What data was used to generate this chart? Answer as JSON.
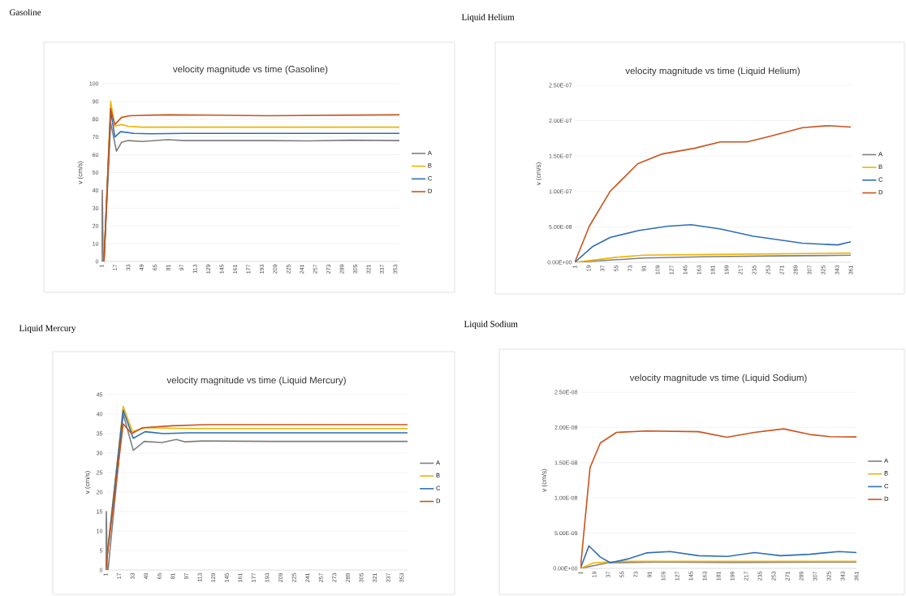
{
  "chart_data": [
    {
      "type": "line",
      "title": "velocity magnitude vs time (Gasoline)",
      "annotations": [
        "Gasoline"
      ],
      "ylabel": "v (cm/s)",
      "xlim": [
        1,
        358
      ],
      "ylim": [
        0,
        100
      ],
      "xticks": [
        1,
        17,
        33,
        49,
        65,
        81,
        97,
        113,
        129,
        145,
        161,
        177,
        193,
        209,
        225,
        241,
        257,
        273,
        289,
        305,
        321,
        337,
        353
      ],
      "yticks": [
        0,
        10,
        20,
        30,
        40,
        50,
        60,
        70,
        80,
        90,
        100
      ],
      "grid": "y",
      "legend": "right",
      "marker": "none",
      "line_style": "solid",
      "series": [
        {
          "name": "A",
          "color": "#7f7f7f",
          "x": [
            1,
            2,
            3,
            4,
            12,
            19,
            25,
            33,
            50,
            80,
            100,
            200,
            250,
            300,
            358
          ],
          "values": [
            0,
            40,
            0,
            0,
            78,
            62,
            67,
            68,
            67.5,
            68.5,
            68,
            68,
            67.8,
            68.2,
            68
          ]
        },
        {
          "name": "B",
          "color": "#f0b400",
          "x": [
            1,
            4,
            12,
            17,
            25,
            33,
            50,
            100,
            200,
            358
          ],
          "values": [
            0,
            0,
            90,
            76,
            77,
            76,
            75.5,
            75.5,
            75.5,
            75.5
          ]
        },
        {
          "name": "C",
          "color": "#2e6fb5",
          "x": [
            1,
            4,
            12,
            17,
            24,
            40,
            60,
            100,
            200,
            358
          ],
          "values": [
            0,
            0,
            85,
            70,
            73,
            72,
            71.8,
            72,
            72,
            72
          ]
        },
        {
          "name": "D",
          "color": "#c9531c",
          "x": [
            1,
            4,
            12,
            17,
            25,
            35,
            80,
            200,
            358
          ],
          "values": [
            0,
            0,
            86,
            77,
            81,
            82,
            82.5,
            82,
            82.5
          ]
        }
      ]
    },
    {
      "type": "line",
      "title": "velocity magnitude vs time (Liquid Helium)",
      "annotations": [
        "Liquid Helium"
      ],
      "ylabel": "v (cm/s)",
      "xlim": [
        1,
        361
      ],
      "ylim": [
        0,
        2.5e-07
      ],
      "xticks": [
        1,
        19,
        37,
        55,
        73,
        91,
        109,
        127,
        145,
        163,
        181,
        199,
        217,
        235,
        253,
        271,
        289,
        307,
        325,
        343,
        361
      ],
      "yticks": [
        {
          "value": 0,
          "label": "0.00E+00"
        },
        {
          "value": 5e-08,
          "label": "5.00E-08"
        },
        {
          "value": 1e-07,
          "label": "1.00E-07"
        },
        {
          "value": 1.5e-07,
          "label": "1.50E-07"
        },
        {
          "value": 2e-07,
          "label": "2.00E-07"
        },
        {
          "value": 2.5e-07,
          "label": "2.50E-07"
        }
      ],
      "grid": "y",
      "legend": "right",
      "marker": "none",
      "line_style": "solid",
      "series": [
        {
          "name": "A",
          "color": "#7f7f7f",
          "x": [
            1,
            91,
            181,
            271,
            361
          ],
          "values": [
            0,
            6e-09,
            8e-09,
            9e-09,
            1e-08
          ]
        },
        {
          "name": "B",
          "color": "#f0b400",
          "x": [
            1,
            55,
            91,
            181,
            271,
            361
          ],
          "values": [
            0,
            7e-09,
            1e-08,
            1.1e-08,
            1.2e-08,
            1.3e-08
          ]
        },
        {
          "name": "C",
          "color": "#2e6fb5",
          "x": [
            1,
            24,
            47,
            85,
            123,
            153,
            191,
            233,
            298,
            344,
            361
          ],
          "values": [
            0,
            2.2e-08,
            3.5e-08,
            4.5e-08,
            5.1e-08,
            5.3e-08,
            4.7e-08,
            3.7e-08,
            2.7e-08,
            2.45e-08,
            2.9e-08
          ]
        },
        {
          "name": "D",
          "color": "#c9531c",
          "x": [
            1,
            20,
            47,
            83,
            115,
            157,
            191,
            226,
            256,
            298,
            332,
            361
          ],
          "values": [
            0,
            5.1e-08,
            1e-07,
            1.39e-07,
            1.53e-07,
            1.61e-07,
            1.7e-07,
            1.7e-07,
            1.78e-07,
            1.9e-07,
            1.93e-07,
            1.91e-07
          ]
        }
      ]
    },
    {
      "type": "line",
      "title": "velocity magnitude vs time (Liquid Mercury)",
      "annotations": [
        "Liquid Mercury"
      ],
      "ylabel": "v (cm/s)",
      "xlim": [
        1,
        360
      ],
      "ylim": [
        0,
        45
      ],
      "xticks": [
        1,
        17,
        33,
        49,
        65,
        81,
        97,
        113,
        129,
        145,
        161,
        177,
        193,
        209,
        225,
        241,
        257,
        273,
        289,
        305,
        321,
        337,
        353
      ],
      "yticks": [
        0,
        5,
        10,
        15,
        20,
        25,
        30,
        35,
        40,
        45
      ],
      "grid": "y",
      "legend": "right",
      "marker": "none",
      "line_style": "solid",
      "series": [
        {
          "name": "A",
          "color": "#7f7f7f",
          "x": [
            1,
            2,
            3,
            4,
            22,
            34,
            47,
            68,
            85,
            95,
            116,
            200,
            360
          ],
          "values": [
            0,
            15,
            0,
            0,
            40,
            30.7,
            33,
            32.7,
            33.5,
            32.9,
            33.1,
            33,
            33
          ]
        },
        {
          "name": "B",
          "color": "#f0b400",
          "x": [
            1,
            22,
            33,
            48,
            100,
            200,
            360
          ],
          "values": [
            0,
            42,
            35.5,
            36.5,
            36.3,
            36.3,
            36.3
          ]
        },
        {
          "name": "C",
          "color": "#2e6fb5",
          "x": [
            1,
            22,
            34,
            48,
            70,
            100,
            360
          ],
          "values": [
            0,
            41,
            33.8,
            35.5,
            35,
            35.2,
            35.2
          ]
        },
        {
          "name": "D",
          "color": "#c9531c",
          "x": [
            1,
            22,
            32,
            45,
            80,
            120,
            360
          ],
          "values": [
            0,
            37.5,
            35,
            36.5,
            37,
            37.3,
            37.3
          ]
        }
      ]
    },
    {
      "type": "line",
      "title": "velocity magnitude vs time (Liquid Sodium)",
      "annotations": [
        "Liquid Sodium"
      ],
      "ylabel": "v (cm/s)",
      "xlim": [
        1,
        361
      ],
      "ylim": [
        0,
        2.5e-08
      ],
      "xticks": [
        1,
        19,
        37,
        55,
        73,
        91,
        109,
        127,
        145,
        163,
        181,
        199,
        217,
        235,
        253,
        271,
        289,
        307,
        325,
        343,
        361
      ],
      "yticks": [
        {
          "value": 0,
          "label": "0.00E+00"
        },
        {
          "value": 5e-09,
          "label": "5.00E-09"
        },
        {
          "value": 1e-08,
          "label": "1.00E-08"
        },
        {
          "value": 1.5e-08,
          "label": "1.50E-08"
        },
        {
          "value": 2e-08,
          "label": "2.00E-08"
        },
        {
          "value": 2.5e-08,
          "label": "2.50E-08"
        }
      ],
      "grid": "y",
      "legend": "right",
      "marker": "none",
      "line_style": "solid",
      "series": [
        {
          "name": "A",
          "color": "#7f7f7f",
          "x": [
            1,
            37,
            100,
            200,
            361
          ],
          "values": [
            0,
            8e-10,
            9e-10,
            8.5e-10,
            9e-10
          ]
        },
        {
          "name": "B",
          "color": "#f0b400",
          "x": [
            1,
            19,
            55,
            150,
            250,
            361
          ],
          "values": [
            0,
            8e-10,
            1e-09,
            1e-09,
            1e-09,
            1e-09
          ]
        },
        {
          "name": "C",
          "color": "#2e6fb5",
          "x": [
            1,
            12,
            27,
            40,
            65,
            87,
            118,
            155,
            193,
            228,
            262,
            300,
            338,
            361
          ],
          "values": [
            0,
            3.2e-09,
            1.6e-09,
            8e-10,
            1.4e-09,
            2.2e-09,
            2.4e-09,
            1.8e-09,
            1.7e-09,
            2.25e-09,
            1.8e-09,
            2e-09,
            2.4e-09,
            2.25e-09
          ]
        },
        {
          "name": "D",
          "color": "#c9531c",
          "x": [
            1,
            13.5,
            27,
            48,
            87,
            155,
            192,
            228,
            266,
            300,
            326,
            361
          ],
          "values": [
            0,
            1.43e-08,
            1.78e-08,
            1.93e-08,
            1.95e-08,
            1.94e-08,
            1.86e-08,
            1.93e-08,
            1.98e-08,
            1.9e-08,
            1.87e-08,
            1.865e-08
          ]
        }
      ]
    }
  ]
}
